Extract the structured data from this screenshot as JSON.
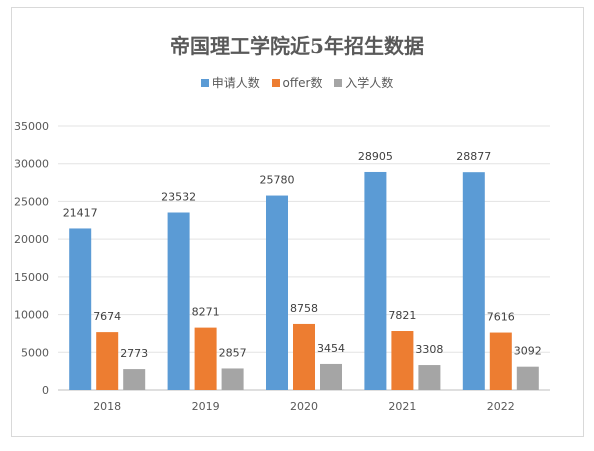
{
  "chart_data": {
    "type": "bar",
    "title": "帝国理工学院近5年招生数据",
    "categories": [
      "2018",
      "2019",
      "2020",
      "2021",
      "2022"
    ],
    "series": [
      {
        "name": "申请人数",
        "color": "#5b9bd5",
        "values": [
          21417,
          23532,
          25780,
          28905,
          28877
        ]
      },
      {
        "name": "offer数",
        "color": "#ed7d31",
        "values": [
          7674,
          8271,
          8758,
          7821,
          7616
        ]
      },
      {
        "name": "入学人数",
        "color": "#a5a5a5",
        "values": [
          2773,
          2857,
          3454,
          3308,
          3092
        ]
      }
    ],
    "ylim": [
      0,
      35000
    ],
    "yticks": [
      "0",
      "5000",
      "10000",
      "15000",
      "20000",
      "25000",
      "30000",
      "35000"
    ],
    "grid": true,
    "legend_position": "top"
  }
}
